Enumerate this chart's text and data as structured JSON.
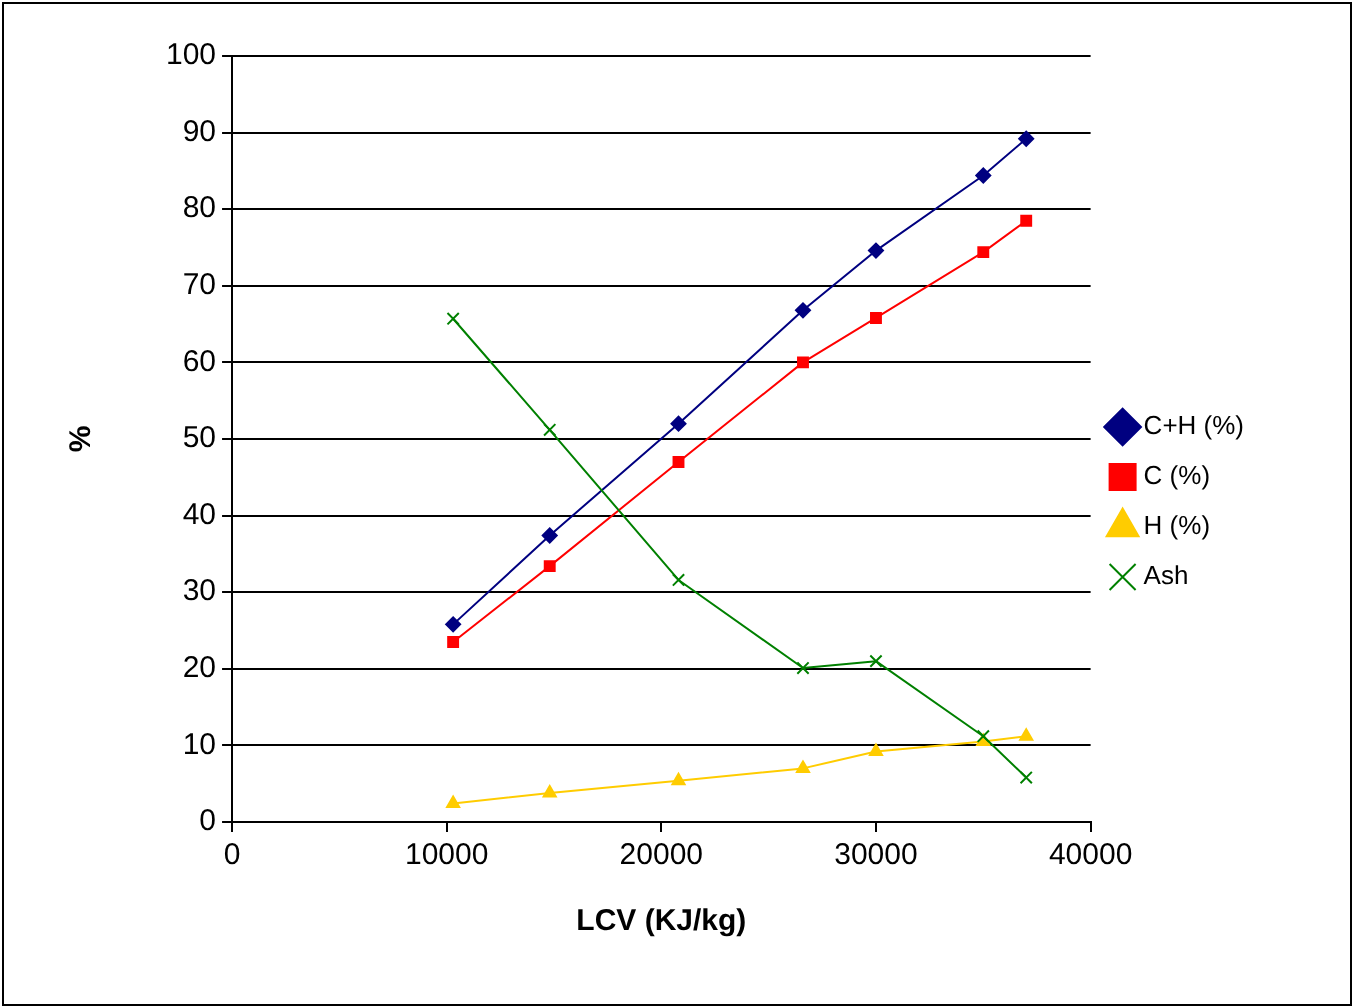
{
  "chart_data": {
    "type": "line",
    "xlabel": "LCV (KJ/kg)",
    "ylabel": "%",
    "x": [
      10300,
      14800,
      20800,
      26600,
      30000,
      35000,
      37000
    ],
    "xlim": [
      0,
      40000
    ],
    "xticks": [
      0,
      10000,
      20000,
      30000,
      40000
    ],
    "ylim": [
      0,
      100
    ],
    "yticks": [
      0,
      10,
      20,
      30,
      40,
      50,
      60,
      70,
      80,
      90,
      100
    ],
    "grid": "y",
    "legend": "right",
    "series": [
      {
        "name": "C+H (%)",
        "color": "#000080",
        "marker": "diamond",
        "values": [
          25.8,
          37.4,
          52,
          66.8,
          74.6,
          84.4,
          89.2
        ]
      },
      {
        "name": "C (%)",
        "color": "#ff0000",
        "marker": "square",
        "values": [
          23.5,
          33.4,
          47,
          60,
          65.8,
          74.4,
          78.5
        ]
      },
      {
        "name": "H (%)",
        "color": "#ffcc00",
        "marker": "triangle",
        "values": [
          2.4,
          3.8,
          5.4,
          7,
          9.2,
          10.5,
          11.2
        ]
      },
      {
        "name": "Ash",
        "color": "#008000",
        "marker": "cross",
        "values": [
          65.7,
          51.2,
          31.6,
          20.1,
          21,
          11.2,
          5.8
        ]
      }
    ]
  }
}
